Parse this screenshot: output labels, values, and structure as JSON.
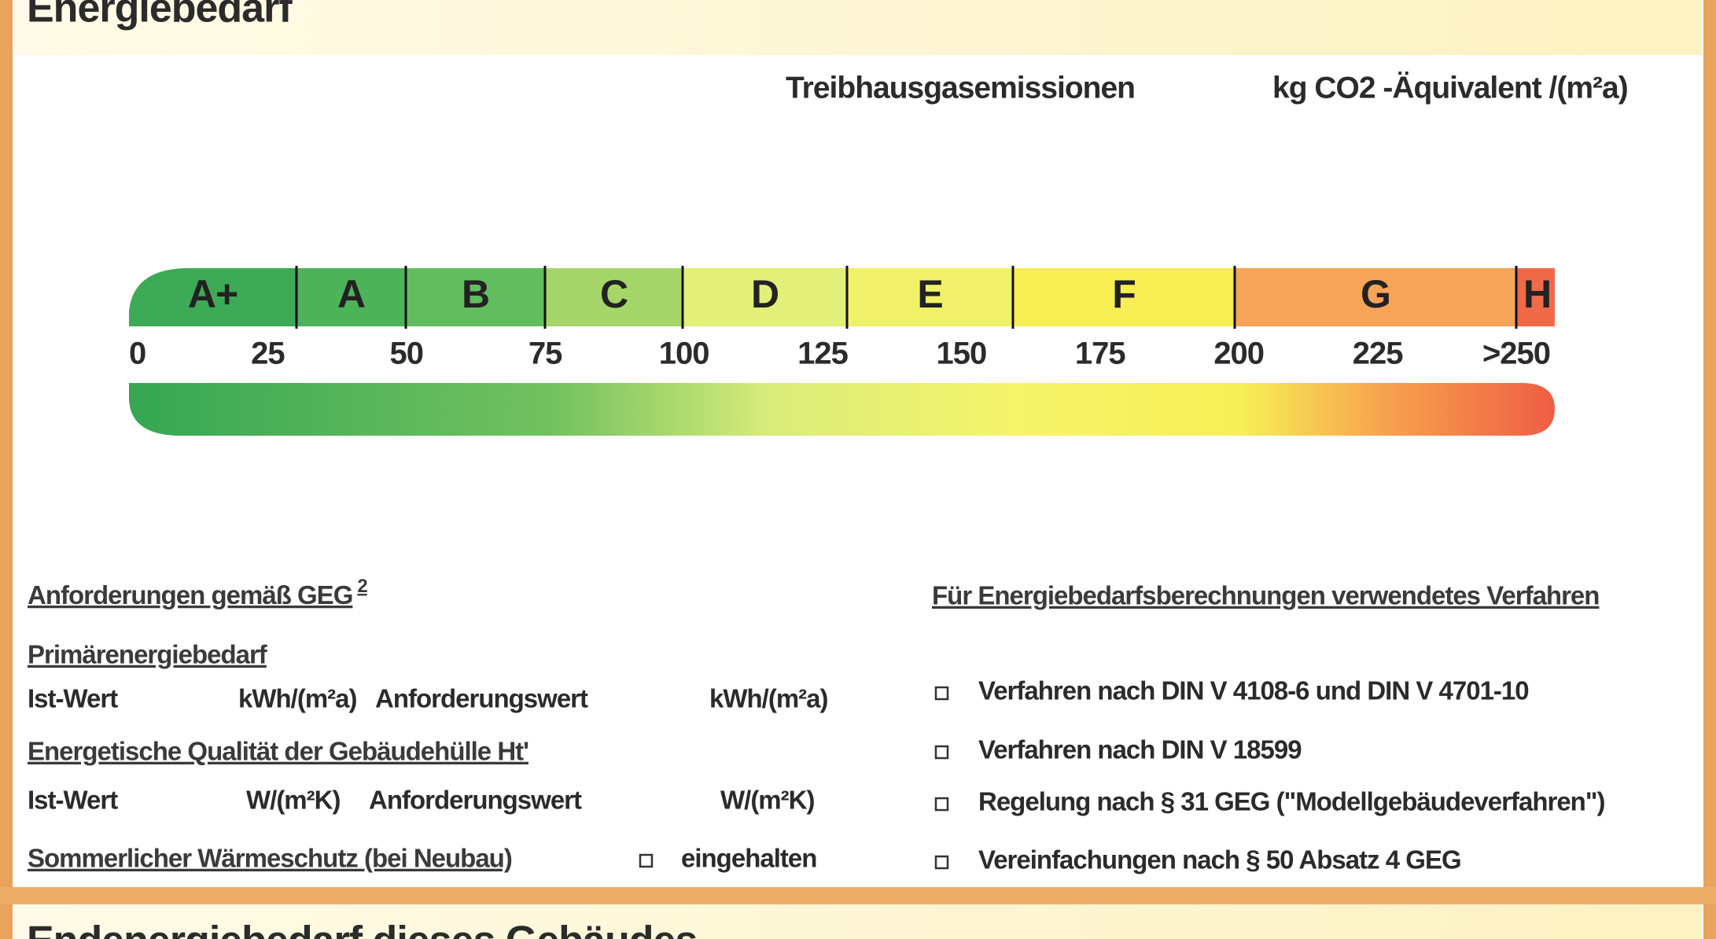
{
  "header": {
    "title": "Energiebedarf"
  },
  "scale": {
    "title": "Treibhausgasemissionen",
    "unit": "kg CO2 -Äquivalent /(m²a)",
    "classes": [
      {
        "label": "A+",
        "color": "#3daa58"
      },
      {
        "label": "A",
        "color": "#4cb35b"
      },
      {
        "label": "B",
        "color": "#62bd5f"
      },
      {
        "label": "C",
        "color": "#a6d56a"
      },
      {
        "label": "D",
        "color": "#e2ef78"
      },
      {
        "label": "E",
        "color": "#f0f168"
      },
      {
        "label": "F",
        "color": "#f6ee52"
      },
      {
        "label": "G",
        "color": "#f6a458"
      },
      {
        "label": "H",
        "color": "#ef6a48"
      }
    ],
    "ticks": [
      0,
      25,
      50,
      75,
      100,
      125,
      150,
      175,
      200,
      225,
      {
        "value": 250,
        "label": ">250"
      }
    ]
  },
  "requirements": {
    "title": "Anforderungen gemäß GEG",
    "footnote": "2",
    "primary": {
      "title": "Primärenergiebedarf",
      "actual": "Ist-Wert",
      "actual_unit": "kWh/(m²a)",
      "required": "Anforderungswert",
      "required_unit": "kWh/(m²a)"
    },
    "envelope": {
      "title": "Energetische Qualität der Gebäudehülle Ht'",
      "actual": "Ist-Wert",
      "actual_unit": "W/(m²K)",
      "required": "Anforderungswert",
      "required_unit": "W/(m²K)"
    },
    "summer": {
      "title": "Sommerlicher Wärmeschutz (bei Neubau)",
      "option": "eingehalten"
    }
  },
  "methods": {
    "title": "Für Energiebedarfsberechnungen verwendetes Verfahren",
    "options": [
      "Verfahren nach DIN V 4108-6 und DIN V 4701-10",
      "Verfahren nach DIN V 18599",
      "Regelung nach § 31 GEG (\"Modellgebäudeverfahren\")",
      "Vereinfachungen nach § 50 Absatz 4 GEG"
    ]
  },
  "footer": {
    "title": "Endenergiebedarf dieses Gebäudes"
  }
}
